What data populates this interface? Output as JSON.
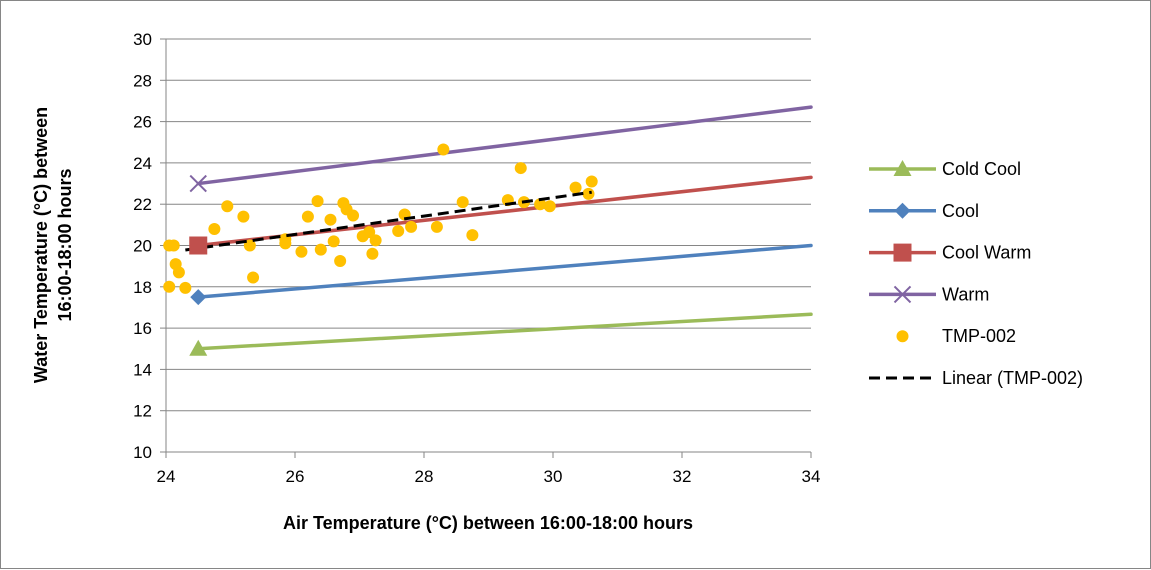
{
  "chart_data": {
    "type": "scatter",
    "xlabel": "Air Temperature (°C) between 16:00-18:00 hours",
    "ylabel_line1": "Water Temperature (°C) between",
    "ylabel_line2": "16:00-18:00 hours",
    "xlim": [
      24,
      34
    ],
    "ylim": [
      10,
      30
    ],
    "x_ticks": [
      24,
      26,
      28,
      30,
      32,
      34
    ],
    "y_ticks": [
      10,
      12,
      14,
      16,
      18,
      20,
      22,
      24,
      26,
      28,
      30
    ],
    "grid": "horizontal",
    "legend_position": "right",
    "series": [
      {
        "name": "Cold Cool",
        "style": "line",
        "marker": "triangle",
        "color": "#9BBB59",
        "marker_point": [
          24.5,
          15.0
        ],
        "line": [
          [
            24.5,
            15.0
          ],
          [
            34,
            16.67
          ]
        ]
      },
      {
        "name": "Cool",
        "style": "line",
        "marker": "diamond",
        "color": "#4F81BD",
        "marker_point": [
          24.5,
          17.5
        ],
        "line": [
          [
            24.5,
            17.5
          ],
          [
            34,
            20.0
          ]
        ]
      },
      {
        "name": "Cool Warm",
        "style": "line",
        "marker": "square",
        "color": "#C0504D",
        "marker_point": [
          24.5,
          20.0
        ],
        "line": [
          [
            24.5,
            20.0
          ],
          [
            34,
            23.3
          ]
        ]
      },
      {
        "name": "Warm",
        "style": "line",
        "marker": "x",
        "color": "#8064A2",
        "marker_point": [
          24.5,
          23.0
        ],
        "line": [
          [
            24.5,
            23.0
          ],
          [
            34,
            26.7
          ]
        ]
      },
      {
        "name": "TMP-002",
        "style": "scatter",
        "marker": "circle",
        "color": "#FFC000",
        "points": [
          [
            24.05,
            18.0
          ],
          [
            24.05,
            20.0
          ],
          [
            24.12,
            20.0
          ],
          [
            24.15,
            19.1
          ],
          [
            24.2,
            18.7
          ],
          [
            24.3,
            17.95
          ],
          [
            24.75,
            20.8
          ],
          [
            24.95,
            21.9
          ],
          [
            25.2,
            21.4
          ],
          [
            25.3,
            20.0
          ],
          [
            25.35,
            18.45
          ],
          [
            25.85,
            20.3
          ],
          [
            25.85,
            20.1
          ],
          [
            26.1,
            19.7
          ],
          [
            26.2,
            21.4
          ],
          [
            26.35,
            22.15
          ],
          [
            26.4,
            19.8
          ],
          [
            26.55,
            21.25
          ],
          [
            26.6,
            20.2
          ],
          [
            26.7,
            19.25
          ],
          [
            26.75,
            22.05
          ],
          [
            26.8,
            21.75
          ],
          [
            26.9,
            21.45
          ],
          [
            27.05,
            20.45
          ],
          [
            27.15,
            20.65
          ],
          [
            27.2,
            19.6
          ],
          [
            27.25,
            20.25
          ],
          [
            27.6,
            20.7
          ],
          [
            27.7,
            21.5
          ],
          [
            27.8,
            20.9
          ],
          [
            28.2,
            20.9
          ],
          [
            28.3,
            24.65
          ],
          [
            28.6,
            22.1
          ],
          [
            28.75,
            20.5
          ],
          [
            29.3,
            22.2
          ],
          [
            29.5,
            23.75
          ],
          [
            29.55,
            22.1
          ],
          [
            29.8,
            22.0
          ],
          [
            29.95,
            21.9
          ],
          [
            30.35,
            22.8
          ],
          [
            30.55,
            22.5
          ],
          [
            30.6,
            23.1
          ]
        ]
      },
      {
        "name": "Linear (TMP-002)",
        "style": "dashed-line",
        "color": "#000000",
        "line": [
          [
            24.3,
            19.78
          ],
          [
            30.6,
            22.58
          ]
        ]
      }
    ]
  }
}
